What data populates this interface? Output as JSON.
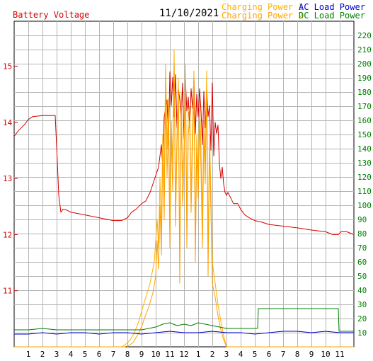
{
  "chart_data": {
    "type": "line",
    "date": "11/10/2021",
    "left_axis": {
      "label": "Battery Voltage",
      "color": "#d40000",
      "ticks": [
        11,
        12,
        13,
        14,
        15
      ],
      "range": [
        10.0,
        15.8
      ]
    },
    "right_axis": {
      "color": "#008000",
      "ticks": [
        10,
        20,
        30,
        40,
        50,
        60,
        70,
        80,
        90,
        100,
        110,
        120,
        130,
        140,
        150,
        160,
        170,
        180,
        190,
        200,
        210,
        220
      ],
      "range": [
        0,
        230
      ]
    },
    "x_axis": {
      "tick_labels": [
        "1",
        "2",
        "3",
        "4",
        "5",
        "6",
        "7",
        "8",
        "9",
        "10",
        "11",
        "12",
        "1",
        "2",
        "3",
        "4",
        "5",
        "6",
        "7",
        "8",
        "9",
        "10",
        "11"
      ],
      "range_hours": [
        0,
        24
      ]
    },
    "grid": true,
    "legend": {
      "position": "top-right",
      "entries": [
        {
          "label": "Charging Power 1",
          "color": "#ffb000"
        },
        {
          "label": "Charging Power 2",
          "color": "#ffa000"
        },
        {
          "label": "AC Load Power",
          "color": "#0000cc"
        },
        {
          "label": "DC Load Power",
          "color": "#008000"
        }
      ]
    },
    "series": [
      {
        "name": "Battery Voltage",
        "axis": "left",
        "color": "#d40000",
        "x": [
          0,
          0.3,
          0.7,
          1.0,
          1.3,
          2.0,
          2.5,
          2.9,
          3.05,
          3.15,
          3.3,
          3.45,
          3.6,
          4,
          5,
          6,
          7,
          7.6,
          8,
          8.3,
          8.6,
          9,
          9.3,
          9.6,
          9.8,
          10,
          10.2,
          10.4,
          10.5,
          10.6,
          10.8,
          10.9,
          11,
          11.1,
          11.2,
          11.3,
          11.4,
          11.5,
          11.6,
          11.7,
          11.8,
          11.9,
          12,
          12.1,
          12.2,
          12.3,
          12.4,
          12.5,
          12.6,
          12.7,
          12.8,
          12.9,
          13,
          13.1,
          13.2,
          13.3,
          13.4,
          13.5,
          13.6,
          13.7,
          13.8,
          13.9,
          14,
          14.1,
          14.2,
          14.3,
          14.4,
          14.5,
          14.6,
          14.7,
          14.8,
          14.9,
          15,
          15.1,
          15.3,
          15.5,
          15.8,
          16,
          16.3,
          16.6,
          17,
          17.5,
          18,
          19,
          20,
          21,
          22,
          22.5,
          22.9,
          23.1,
          23.5,
          24
        ],
        "y": [
          13.75,
          13.85,
          13.95,
          14.05,
          14.1,
          14.12,
          14.12,
          14.12,
          13.3,
          12.7,
          12.4,
          12.45,
          12.45,
          12.4,
          12.35,
          12.3,
          12.25,
          12.25,
          12.3,
          12.4,
          12.45,
          12.55,
          12.6,
          12.75,
          12.9,
          13.05,
          13.2,
          13.6,
          13.2,
          14.1,
          14.4,
          13.6,
          14.9,
          14.3,
          14.8,
          14.1,
          14.85,
          13.9,
          14.6,
          14.4,
          14.05,
          14.7,
          13.7,
          14.75,
          14.2,
          14.45,
          13.9,
          14.6,
          14.25,
          14.8,
          13.8,
          14.5,
          14.1,
          14.6,
          14.2,
          13.6,
          14.55,
          13.9,
          14.6,
          14.1,
          14.3,
          13.5,
          14.7,
          13.4,
          14.0,
          13.8,
          13.95,
          13.25,
          13.0,
          13.2,
          12.9,
          12.75,
          12.7,
          12.75,
          12.65,
          12.55,
          12.55,
          12.45,
          12.35,
          12.3,
          12.25,
          12.22,
          12.18,
          12.15,
          12.12,
          12.08,
          12.05,
          12.0,
          12.0,
          12.05,
          12.05,
          12.0
        ]
      },
      {
        "name": "Charging Power 1",
        "axis": "right",
        "color": "#ffb000",
        "x": [
          0,
          7.6,
          7.9,
          8.2,
          8.5,
          8.8,
          9.0,
          9.3,
          9.6,
          9.9,
          10.1,
          10.2,
          10.3,
          10.4,
          10.5,
          10.6,
          10.7,
          10.8,
          10.9,
          11.0,
          11.1,
          11.2,
          11.3,
          11.4,
          11.5,
          11.6,
          11.7,
          11.8,
          11.9,
          12.0,
          12.1,
          12.2,
          12.3,
          12.4,
          12.5,
          12.6,
          12.7,
          12.8,
          12.9,
          13.0,
          13.1,
          13.2,
          13.3,
          13.4,
          13.5,
          13.6,
          13.7,
          13.8,
          13.9,
          14.0,
          14.2,
          14.4,
          14.6,
          14.8,
          15.0,
          24
        ],
        "y": [
          0,
          0,
          2,
          5,
          10,
          18,
          25,
          35,
          45,
          60,
          90,
          70,
          120,
          80,
          150,
          110,
          200,
          140,
          175,
          95,
          160,
          130,
          210,
          100,
          150,
          190,
          60,
          180,
          120,
          140,
          200,
          90,
          165,
          170,
          110,
          155,
          195,
          80,
          150,
          120,
          175,
          140,
          90,
          160,
          130,
          195,
          70,
          150,
          110,
          60,
          45,
          30,
          18,
          8,
          0,
          0
        ]
      },
      {
        "name": "Charging Power 2",
        "axis": "right",
        "color": "#ffa000",
        "x": [
          0,
          7.8,
          8.1,
          8.4,
          8.7,
          9.0,
          9.2,
          9.5,
          9.8,
          10.0,
          10.1,
          10.2,
          10.3,
          10.4,
          10.5,
          10.6,
          10.7,
          10.8,
          10.9,
          11.0,
          11.1,
          11.2,
          11.3,
          11.4,
          11.5,
          11.6,
          11.7,
          11.8,
          11.9,
          12.0,
          12.1,
          12.2,
          12.3,
          12.4,
          12.5,
          12.6,
          12.7,
          12.8,
          12.9,
          13.0,
          13.1,
          13.2,
          13.3,
          13.4,
          13.5,
          13.6,
          13.7,
          13.8,
          13.9,
          14.0,
          14.2,
          14.4,
          14.6,
          14.8,
          15.0,
          24
        ],
        "y": [
          0,
          0,
          1,
          3,
          8,
          14,
          20,
          28,
          38,
          50,
          75,
          55,
          100,
          65,
          140,
          90,
          180,
          120,
          160,
          70,
          150,
          110,
          200,
          85,
          140,
          175,
          45,
          170,
          100,
          125,
          190,
          70,
          150,
          160,
          95,
          140,
          180,
          60,
          140,
          105,
          160,
          125,
          70,
          150,
          115,
          180,
          50,
          140,
          95,
          45,
          35,
          22,
          12,
          5,
          0,
          0
        ]
      },
      {
        "name": "AC Load Power",
        "axis": "right",
        "color": "#0000cc",
        "x": [
          0,
          1,
          2,
          3,
          4,
          5,
          6,
          7,
          8,
          9,
          10,
          11,
          12,
          13,
          14,
          15,
          16,
          17,
          18,
          19,
          20,
          21,
          22,
          23,
          24
        ],
        "y": [
          9,
          9,
          10,
          9,
          10,
          10,
          9,
          10,
          10,
          9,
          10,
          11,
          10,
          10,
          11,
          10,
          10,
          9,
          10,
          11,
          11,
          10,
          11,
          10,
          10
        ]
      },
      {
        "name": "DC Load Power",
        "axis": "right",
        "color": "#008000",
        "x": [
          0,
          1,
          2,
          3,
          4,
          5,
          6,
          7,
          8,
          9,
          9.5,
          10,
          10.5,
          11,
          11.5,
          12,
          12.5,
          13,
          13.5,
          14,
          15,
          16,
          16.5,
          17.2,
          17.25,
          18,
          19,
          20,
          21,
          22,
          22.9,
          22.95,
          24
        ],
        "y": [
          12,
          12,
          13,
          12,
          12,
          12,
          12,
          12,
          12,
          12,
          13,
          14,
          16,
          17,
          15,
          16,
          15,
          17,
          16,
          15,
          13,
          13,
          13,
          13,
          27,
          27,
          27,
          27,
          27,
          27,
          27,
          11,
          11
        ]
      }
    ]
  }
}
